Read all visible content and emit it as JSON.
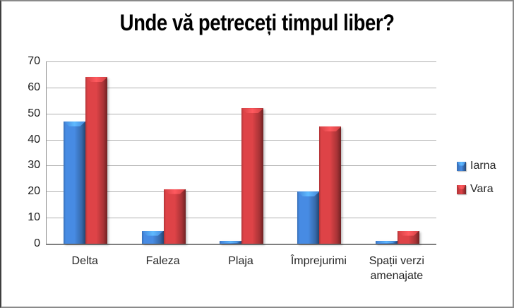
{
  "window": {
    "background": "#ffffff",
    "frame_border": "#4a4a4a"
  },
  "chart_data": {
    "type": "bar",
    "title": "Unde vă petreceți timpul liber?",
    "categories": [
      "Delta",
      "Faleza",
      "Plaja",
      "Împrejurimi",
      "Spații verzi amenajate"
    ],
    "series": [
      {
        "name": "Iarna",
        "color": "#3d78c4",
        "values": [
          47,
          5,
          1,
          20,
          1
        ]
      },
      {
        "name": "Vara",
        "color": "#bf3a3d",
        "values": [
          64,
          21,
          52,
          45,
          5
        ]
      }
    ],
    "xlabel": "",
    "ylabel": "",
    "ylim": [
      0,
      70
    ],
    "yticks": [
      0,
      10,
      20,
      30,
      40,
      50,
      60,
      70
    ],
    "grid": true,
    "gridline_color": "#b0b0b0",
    "axis_color": "#808080",
    "legend_position": "right",
    "legend": [
      "Iarna",
      "Vara"
    ]
  }
}
